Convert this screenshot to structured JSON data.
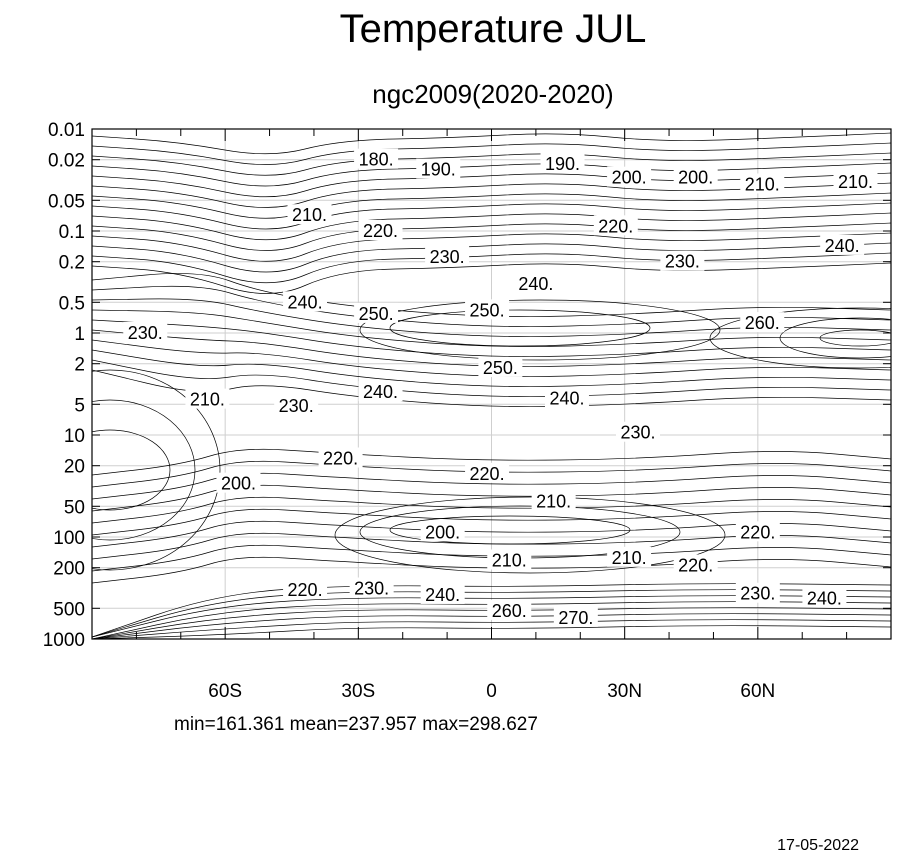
{
  "chart_data": {
    "type": "contour",
    "title": "Temperature JUL",
    "subtitle": "ngc2009(2020-2020)",
    "xlabel": "",
    "ylabel": "",
    "x_range": [
      -90,
      90
    ],
    "y_scale": "log",
    "y_range": [
      0.01,
      1000
    ],
    "x_ticks": [
      "60S",
      "30S",
      "0",
      "30N",
      "60N"
    ],
    "x_tick_values": [
      -60,
      -30,
      0,
      30,
      60
    ],
    "y_ticks": [
      "0.01",
      "0.02",
      "0.05",
      "0.1",
      "0.2",
      "0.5",
      "1",
      "2",
      "5",
      "10",
      "20",
      "50",
      "100",
      "200",
      "500",
      "1000"
    ],
    "y_tick_values": [
      0.01,
      0.02,
      0.05,
      0.1,
      0.2,
      0.5,
      1,
      2,
      5,
      10,
      20,
      50,
      100,
      200,
      500,
      1000
    ],
    "grid": true,
    "contour_labels": [
      {
        "text": "180.",
        "lat": -26,
        "p": 0.02
      },
      {
        "text": "190.",
        "lat": -12,
        "p": 0.025
      },
      {
        "text": "190.",
        "lat": 16,
        "p": 0.022
      },
      {
        "text": "200.",
        "lat": 31,
        "p": 0.03
      },
      {
        "text": "200.",
        "lat": 46,
        "p": 0.03
      },
      {
        "text": "210.",
        "lat": 61,
        "p": 0.035
      },
      {
        "text": "210.",
        "lat": 82,
        "p": 0.033
      },
      {
        "text": "210.",
        "lat": -41,
        "p": 0.07
      },
      {
        "text": "220.",
        "lat": -25,
        "p": 0.1
      },
      {
        "text": "220.",
        "lat": 28,
        "p": 0.09
      },
      {
        "text": "230.",
        "lat": -10,
        "p": 0.18
      },
      {
        "text": "230.",
        "lat": 43,
        "p": 0.2
      },
      {
        "text": "240.",
        "lat": 79,
        "p": 0.14
      },
      {
        "text": "240.",
        "lat": 10,
        "p": 0.33
      },
      {
        "text": "240.",
        "lat": -42,
        "p": 0.5
      },
      {
        "text": "250.",
        "lat": -26,
        "p": 0.65
      },
      {
        "text": "250.",
        "lat": -1,
        "p": 0.6
      },
      {
        "text": "260.",
        "lat": 61,
        "p": 0.8
      },
      {
        "text": "230.",
        "lat": -78,
        "p": 1.0
      },
      {
        "text": "250.",
        "lat": 2,
        "p": 2.2
      },
      {
        "text": "240.",
        "lat": -25,
        "p": 3.8
      },
      {
        "text": "240.",
        "lat": 17,
        "p": 4.4
      },
      {
        "text": "210.",
        "lat": -64,
        "p": 4.5
      },
      {
        "text": "230.",
        "lat": -44,
        "p": 5.2
      },
      {
        "text": "230.",
        "lat": 33,
        "p": 9.5
      },
      {
        "text": "220.",
        "lat": -34,
        "p": 17
      },
      {
        "text": "220.",
        "lat": -1,
        "p": 24
      },
      {
        "text": "200.",
        "lat": -57,
        "p": 30
      },
      {
        "text": "210.",
        "lat": 14,
        "p": 45
      },
      {
        "text": "200.",
        "lat": -11,
        "p": 90
      },
      {
        "text": "220.",
        "lat": 60,
        "p": 90
      },
      {
        "text": "210.",
        "lat": 4,
        "p": 170
      },
      {
        "text": "210.",
        "lat": 31,
        "p": 160
      },
      {
        "text": "220.",
        "lat": 46,
        "p": 190
      },
      {
        "text": "220.",
        "lat": -42,
        "p": 330
      },
      {
        "text": "230.",
        "lat": -27,
        "p": 320
      },
      {
        "text": "230.",
        "lat": 60,
        "p": 360
      },
      {
        "text": "240.",
        "lat": -11,
        "p": 370
      },
      {
        "text": "240.",
        "lat": 75,
        "p": 400
      },
      {
        "text": "260.",
        "lat": 4,
        "p": 530
      },
      {
        "text": "270.",
        "lat": 19,
        "p": 620
      }
    ]
  },
  "stats": "min=161.361   mean=237.957   max=298.627",
  "date": "17-05-2022"
}
